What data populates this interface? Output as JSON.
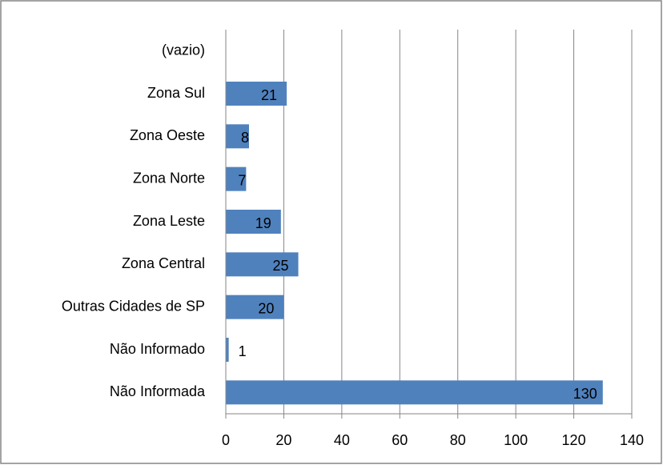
{
  "chart_data": {
    "type": "bar",
    "orientation": "horizontal",
    "categories": [
      "(vazio)",
      "Zona Sul",
      "Zona Oeste",
      "Zona Norte",
      "Zona Leste",
      "Zona Central",
      "Outras Cidades de SP",
      "Não Informado",
      "Não Informada"
    ],
    "values": [
      null,
      21,
      8,
      7,
      19,
      25,
      20,
      1,
      130
    ],
    "color": "#4f81bd",
    "xlim": [
      0,
      140
    ],
    "xticks": [
      0,
      20,
      40,
      60,
      80,
      100,
      120,
      140
    ],
    "grid": true
  }
}
